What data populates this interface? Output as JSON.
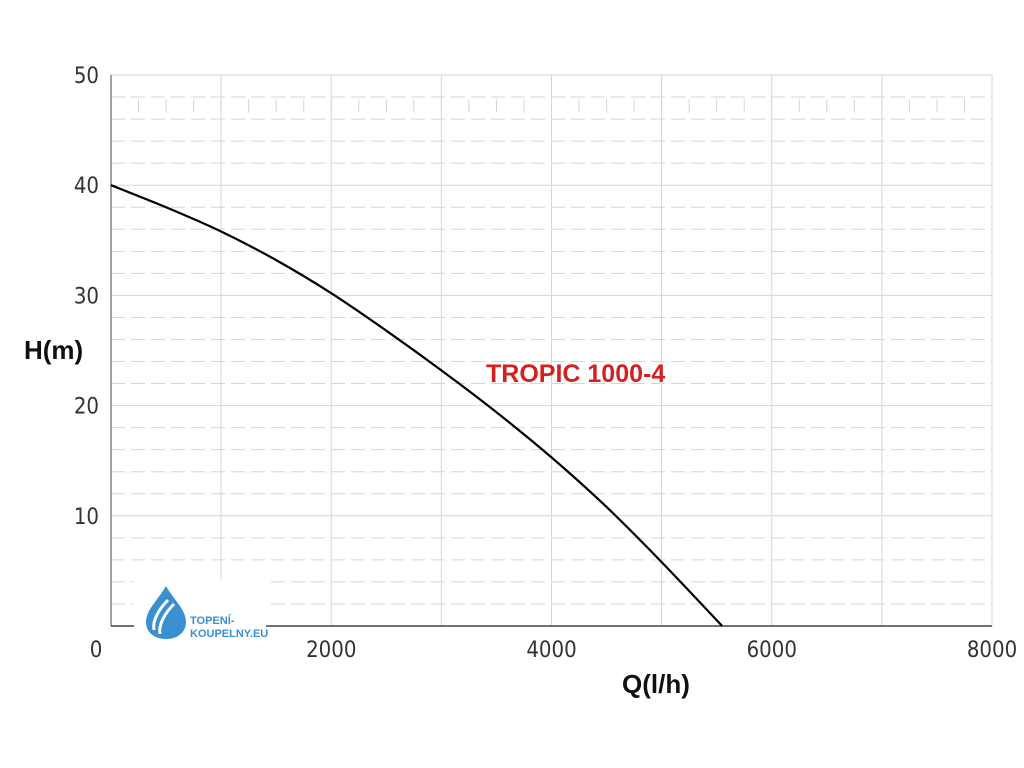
{
  "chart_data": {
    "type": "line",
    "xlabel": "Q(l/h)",
    "ylabel": "H(m)",
    "xlim": [
      0,
      8000
    ],
    "ylim": [
      0,
      50
    ],
    "x_ticks": [
      "0",
      "2000",
      "4000",
      "6000",
      "8000"
    ],
    "y_ticks": [
      "10",
      "20",
      "30",
      "40",
      "50"
    ],
    "grid": true,
    "series": [
      {
        "name": "TROPIC 1000-4",
        "x": [
          0,
          500,
          1000,
          1500,
          2000,
          2500,
          3000,
          3500,
          4000,
          4500,
          5000,
          5550
        ],
        "y": [
          40,
          38,
          35.8,
          33.2,
          30.2,
          26.8,
          23.2,
          19.4,
          15.3,
          10.8,
          5.8,
          0
        ]
      }
    ]
  },
  "colors": {
    "curve": "#000000",
    "series_label": "#d42020",
    "grid": "#d6d6d6",
    "logo": "#3a8fd0"
  },
  "logo": {
    "icon": "water-drop-icon",
    "line1": "TOPENÍ-",
    "line2": "KOUPELNY.EU"
  }
}
